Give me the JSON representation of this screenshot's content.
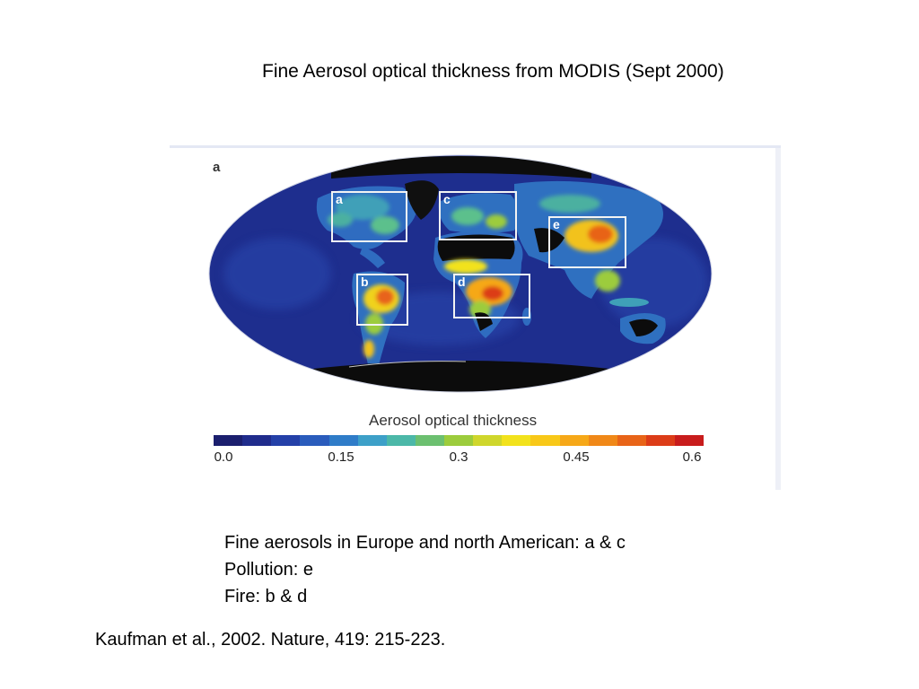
{
  "title": "Fine Aerosol optical thickness from MODIS (Sept 2000)",
  "figure": {
    "panel_label": "a",
    "colorbar_label": "Aerosol optical thickness",
    "colorbar_ticks": [
      "0.0",
      "0.15",
      "0.3",
      "0.45",
      "0.6"
    ],
    "colorbar_colors": [
      "#1b1f6e",
      "#202c8c",
      "#2440a8",
      "#2a5cbc",
      "#2f7cc8",
      "#3da0c8",
      "#4cb8a8",
      "#6cc070",
      "#9ccc3c",
      "#cfd62c",
      "#f2e21c",
      "#f8c818",
      "#f6a818",
      "#f08818",
      "#e86418",
      "#dc3c18",
      "#c81c1c"
    ],
    "regions": [
      {
        "label": "a"
      },
      {
        "label": "c"
      },
      {
        "label": "e"
      },
      {
        "label": "b"
      },
      {
        "label": "d"
      }
    ]
  },
  "notes": [
    "Fine aerosols in Europe and  north American: a & c",
    "Pollution: e",
    "Fire: b & d"
  ],
  "citation": "Kaufman et al., 2002. Nature, 419: 215-223."
}
